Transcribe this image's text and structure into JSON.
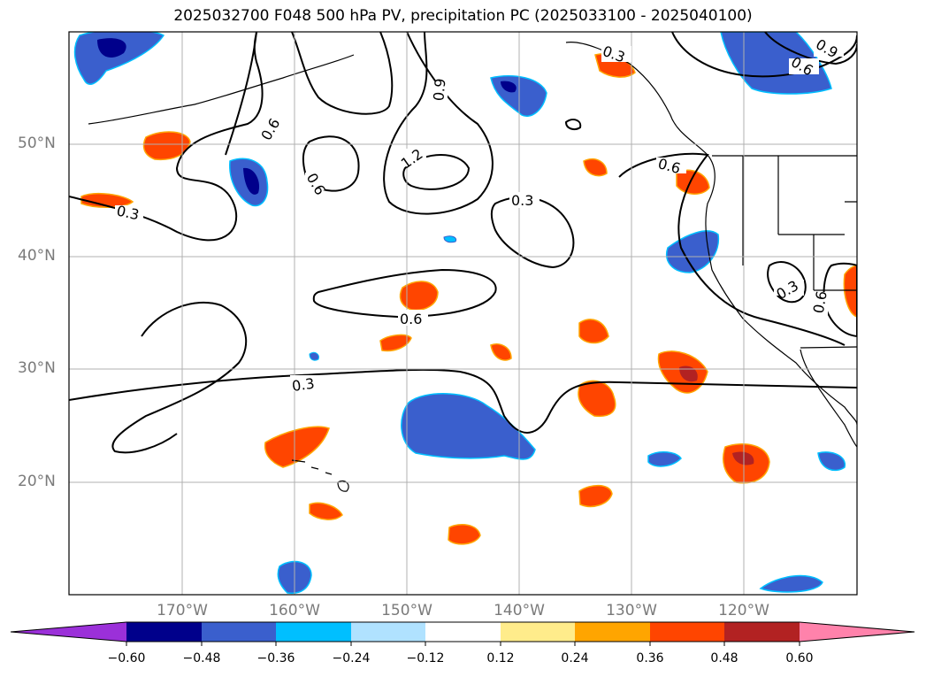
{
  "title": "2025032700 F048 500 hPa PV, precipitation PC (2025033100 - 2025040100)",
  "map": {
    "lat_labels": [
      "50°N",
      "40°N",
      "30°N",
      "20°N"
    ],
    "lon_labels": [
      "170°W",
      "160°W",
      "150°W",
      "140°W",
      "130°W",
      "120°W"
    ],
    "contour_labels": [
      "0.3",
      "0.6",
      "0.9",
      "1.2"
    ],
    "colors": {
      "frame": "#000000",
      "grid": "#b0b0b0",
      "contour": "#000000"
    }
  },
  "colorbar": {
    "ticks": [
      "−0.60",
      "−0.48",
      "−0.36",
      "−0.24",
      "−0.12",
      "0.12",
      "0.24",
      "0.36",
      "0.48",
      "0.60"
    ],
    "colors": [
      "#9b30d9",
      "#00008b",
      "#3a5fcd",
      "#00bfff",
      "#b0e2ff",
      "#ffffff",
      "#ffec8b",
      "#ffa500",
      "#ff4500",
      "#b22222",
      "#ff82ab"
    ]
  }
}
